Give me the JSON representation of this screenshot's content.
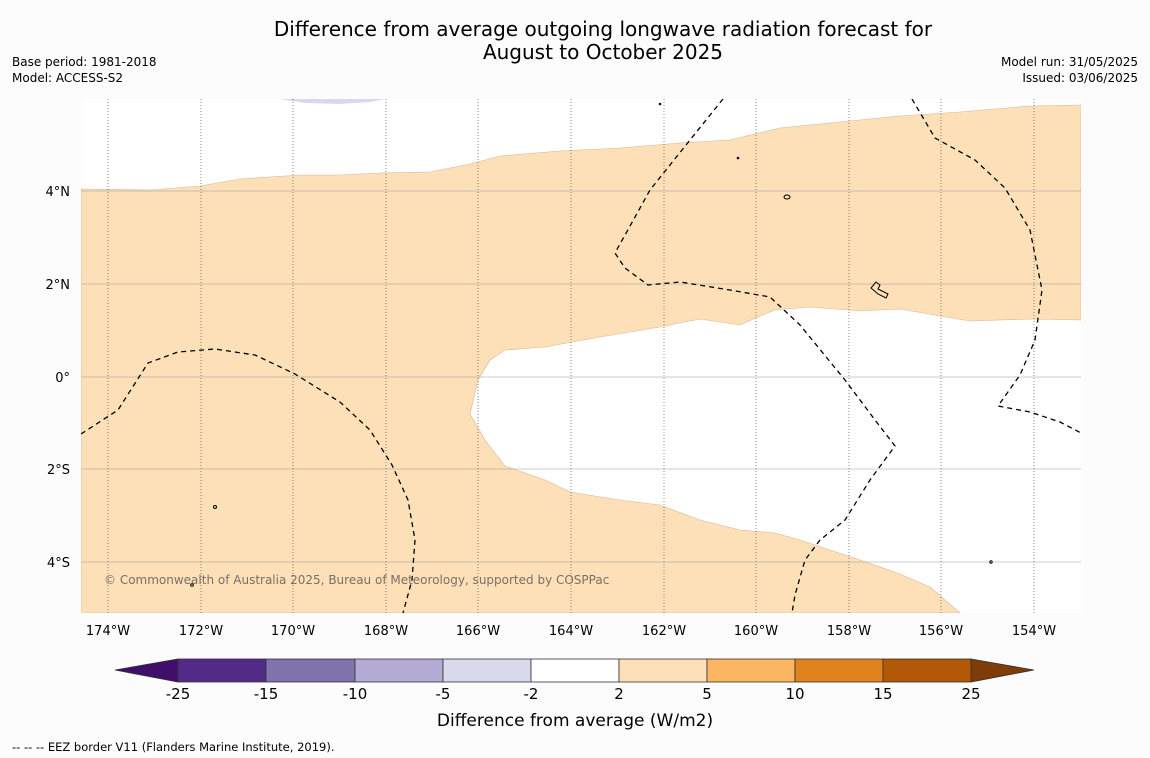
{
  "title": {
    "line1": "Difference from average outgoing longwave radiation forecast for",
    "line2": "August to October 2025"
  },
  "metadata": {
    "base_period": "Base period: 1981-2018",
    "model": "Model: ACCESS-S2",
    "model_run": "Model run: 31/05/2025",
    "issued": "Issued: 03/06/2025"
  },
  "map": {
    "latitude_labels": [
      "4°N",
      "2°N",
      "0°",
      "2°S",
      "4°S"
    ],
    "longitude_labels": [
      "174°W",
      "172°W",
      "170°W",
      "168°W",
      "166°W",
      "164°W",
      "162°W",
      "160°W",
      "158°W",
      "156°W",
      "154°W"
    ],
    "copyright": "© Commonwealth of Australia 2025, Bureau of Meteorology, supported by COSPPac",
    "colors": {
      "anomaly_2_to_5": "#fde0b8",
      "anomaly_minus5_to_minus2": "#d9d9ee",
      "background": "#ffffff",
      "eez_border": "#000000"
    }
  },
  "colorbar": {
    "tick_labels": [
      "-25",
      "-15",
      "-10",
      "-5",
      "-2",
      "2",
      "5",
      "10",
      "15",
      "25"
    ],
    "label": "Difference from average (W/m2)",
    "colors": [
      "#3f0f6b",
      "#542a89",
      "#7f72ad",
      "#b3abd4",
      "#d9d9ee",
      "#ffffff",
      "#fde0b8",
      "#fbb662",
      "#e2821c",
      "#b35806",
      "#7f3b08"
    ]
  },
  "footer": {
    "legend_text": "--  --  -- EEZ border V11 (Flanders Marine Institute, 2019)."
  }
}
